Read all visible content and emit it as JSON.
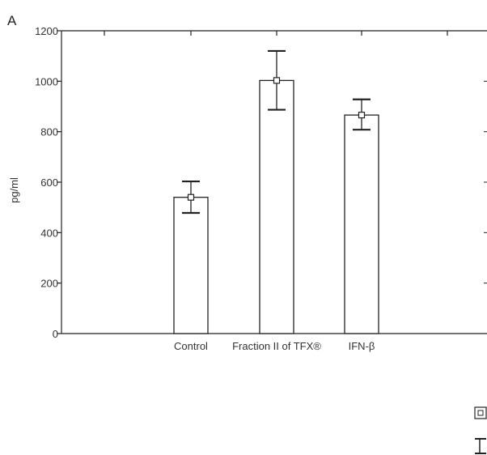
{
  "panel_label": "A",
  "colors": {
    "axis": "#222222",
    "bar_fill": "#ffffff",
    "bar_stroke": "#222222",
    "text": "#333333"
  },
  "legend": [
    {
      "icon": "mean-marker-icon"
    },
    {
      "icon": "error-bar-icon"
    }
  ],
  "chart_data": {
    "type": "bar",
    "categories": [
      "Control",
      "Fraction II of TFX®",
      "IFN-β"
    ],
    "values": [
      540,
      1003,
      866
    ],
    "error_low": [
      478,
      887,
      808
    ],
    "error_high": [
      603,
      1120,
      928
    ],
    "ylabel": "pg/ml",
    "xlabel": "",
    "ylim": [
      0,
      1200
    ],
    "yticks": [
      0,
      200,
      400,
      600,
      800,
      1000,
      1200
    ],
    "grid": false,
    "legend_placement": "bottom-right"
  }
}
